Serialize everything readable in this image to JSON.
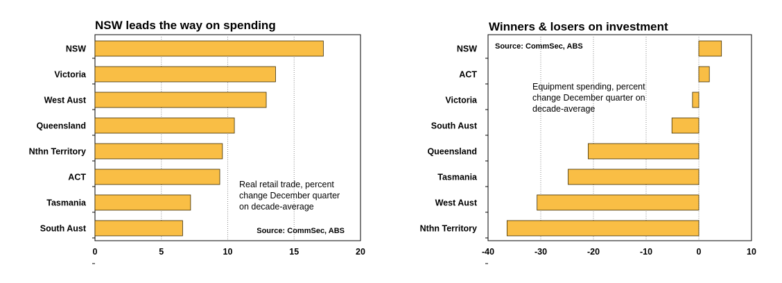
{
  "chart_data": [
    {
      "type": "bar",
      "orientation": "horizontal",
      "title": "NSW leads the way on spending",
      "categories": [
        "NSW",
        "Victoria",
        "West Aust",
        "Queensland",
        "Nthn Territory",
        "ACT",
        "Tasmania",
        "South Aust"
      ],
      "values": [
        17.2,
        13.6,
        12.9,
        10.5,
        9.6,
        9.4,
        7.2,
        6.6
      ],
      "xlim": [
        0,
        20
      ],
      "xticks": [
        "0",
        "5",
        "10",
        "15",
        "20"
      ],
      "grid": "vertical dotted",
      "annotation": [
        "Real retail trade, percent",
        "change December quarter",
        "on decade-average"
      ],
      "source": "Source: CommSec, ABS",
      "bar_color": "#f9be45"
    },
    {
      "type": "bar",
      "orientation": "horizontal",
      "title": "Winners & losers on investment",
      "categories": [
        "NSW",
        "ACT",
        "Victoria",
        "South Aust",
        "Queensland",
        "Tasmania",
        "West Aust",
        "Nthn Territory"
      ],
      "values": [
        4.3,
        2.0,
        -1.2,
        -5.1,
        -21.0,
        -24.8,
        -30.7,
        -36.4
      ],
      "xlim": [
        -40,
        10
      ],
      "xticks": [
        "-40",
        "-30",
        "-20",
        "-10",
        "0",
        "10"
      ],
      "grid": "vertical dotted",
      "annotation": [
        "Equipment spending, percent",
        "change December quarter on",
        "decade-average"
      ],
      "source": "Source: CommSec, ABS",
      "bar_color": "#f9be45"
    }
  ]
}
